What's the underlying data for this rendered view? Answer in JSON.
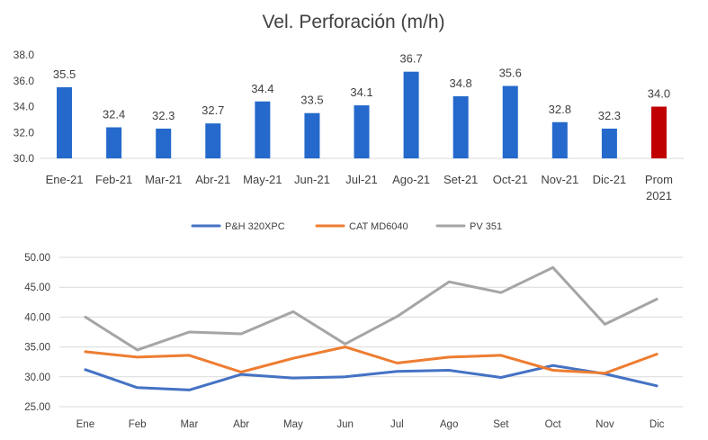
{
  "chart_data": [
    {
      "type": "bar",
      "title": "Vel. Perforación (m/h)",
      "categories": [
        "Ene-21",
        "Feb-21",
        "Mar-21",
        "Abr-21",
        "May-21",
        "Jun-21",
        "Jul-21",
        "Ago-21",
        "Set-21",
        "Oct-21",
        "Nov-21",
        "Dic-21",
        "Prom 2021"
      ],
      "values": [
        35.5,
        32.4,
        32.3,
        32.7,
        34.4,
        33.5,
        34.1,
        36.7,
        34.8,
        35.6,
        32.8,
        32.3,
        34.0
      ],
      "data_labels": [
        "35.5",
        "32.4",
        "32.3",
        "32.7",
        "34.4",
        "33.5",
        "34.1",
        "36.7",
        "34.8",
        "35.6",
        "32.8",
        "32.3",
        "34.0"
      ],
      "ylim": [
        30.0,
        38.0
      ],
      "yticks": [
        "30.0",
        "32.0",
        "34.0",
        "36.0",
        "38.0"
      ],
      "colors": {
        "bar": "#2469CB",
        "highlight": "#C00000",
        "highlight_index": 12
      },
      "grid": false
    },
    {
      "type": "line",
      "categories": [
        "Ene",
        "Feb",
        "Mar",
        "Abr",
        "May",
        "Jun",
        "Jul",
        "Ago",
        "Set",
        "Oct",
        "Nov",
        "Dic"
      ],
      "ylim": [
        25.0,
        50.0
      ],
      "yticks": [
        "25.00",
        "30.00",
        "35.00",
        "40.00",
        "45.00",
        "50.00"
      ],
      "legend_position": "top",
      "grid": true,
      "series": [
        {
          "name": "P&H 320XPC",
          "color": "#4472C4",
          "values": [
            31.2,
            28.2,
            27.8,
            30.4,
            29.8,
            30.0,
            30.9,
            31.1,
            29.9,
            31.9,
            30.5,
            28.5
          ]
        },
        {
          "name": "CAT MD6040",
          "color": "#ED7D31",
          "values": [
            34.2,
            33.3,
            33.6,
            30.8,
            33.1,
            35.0,
            32.3,
            33.3,
            33.6,
            31.1,
            30.6,
            33.8
          ]
        },
        {
          "name": "PV 351",
          "color": "#A5A5A5",
          "values": [
            40.0,
            34.5,
            37.5,
            37.2,
            40.9,
            35.5,
            40.1,
            45.9,
            44.1,
            48.3,
            38.8,
            43.0
          ]
        }
      ]
    }
  ]
}
